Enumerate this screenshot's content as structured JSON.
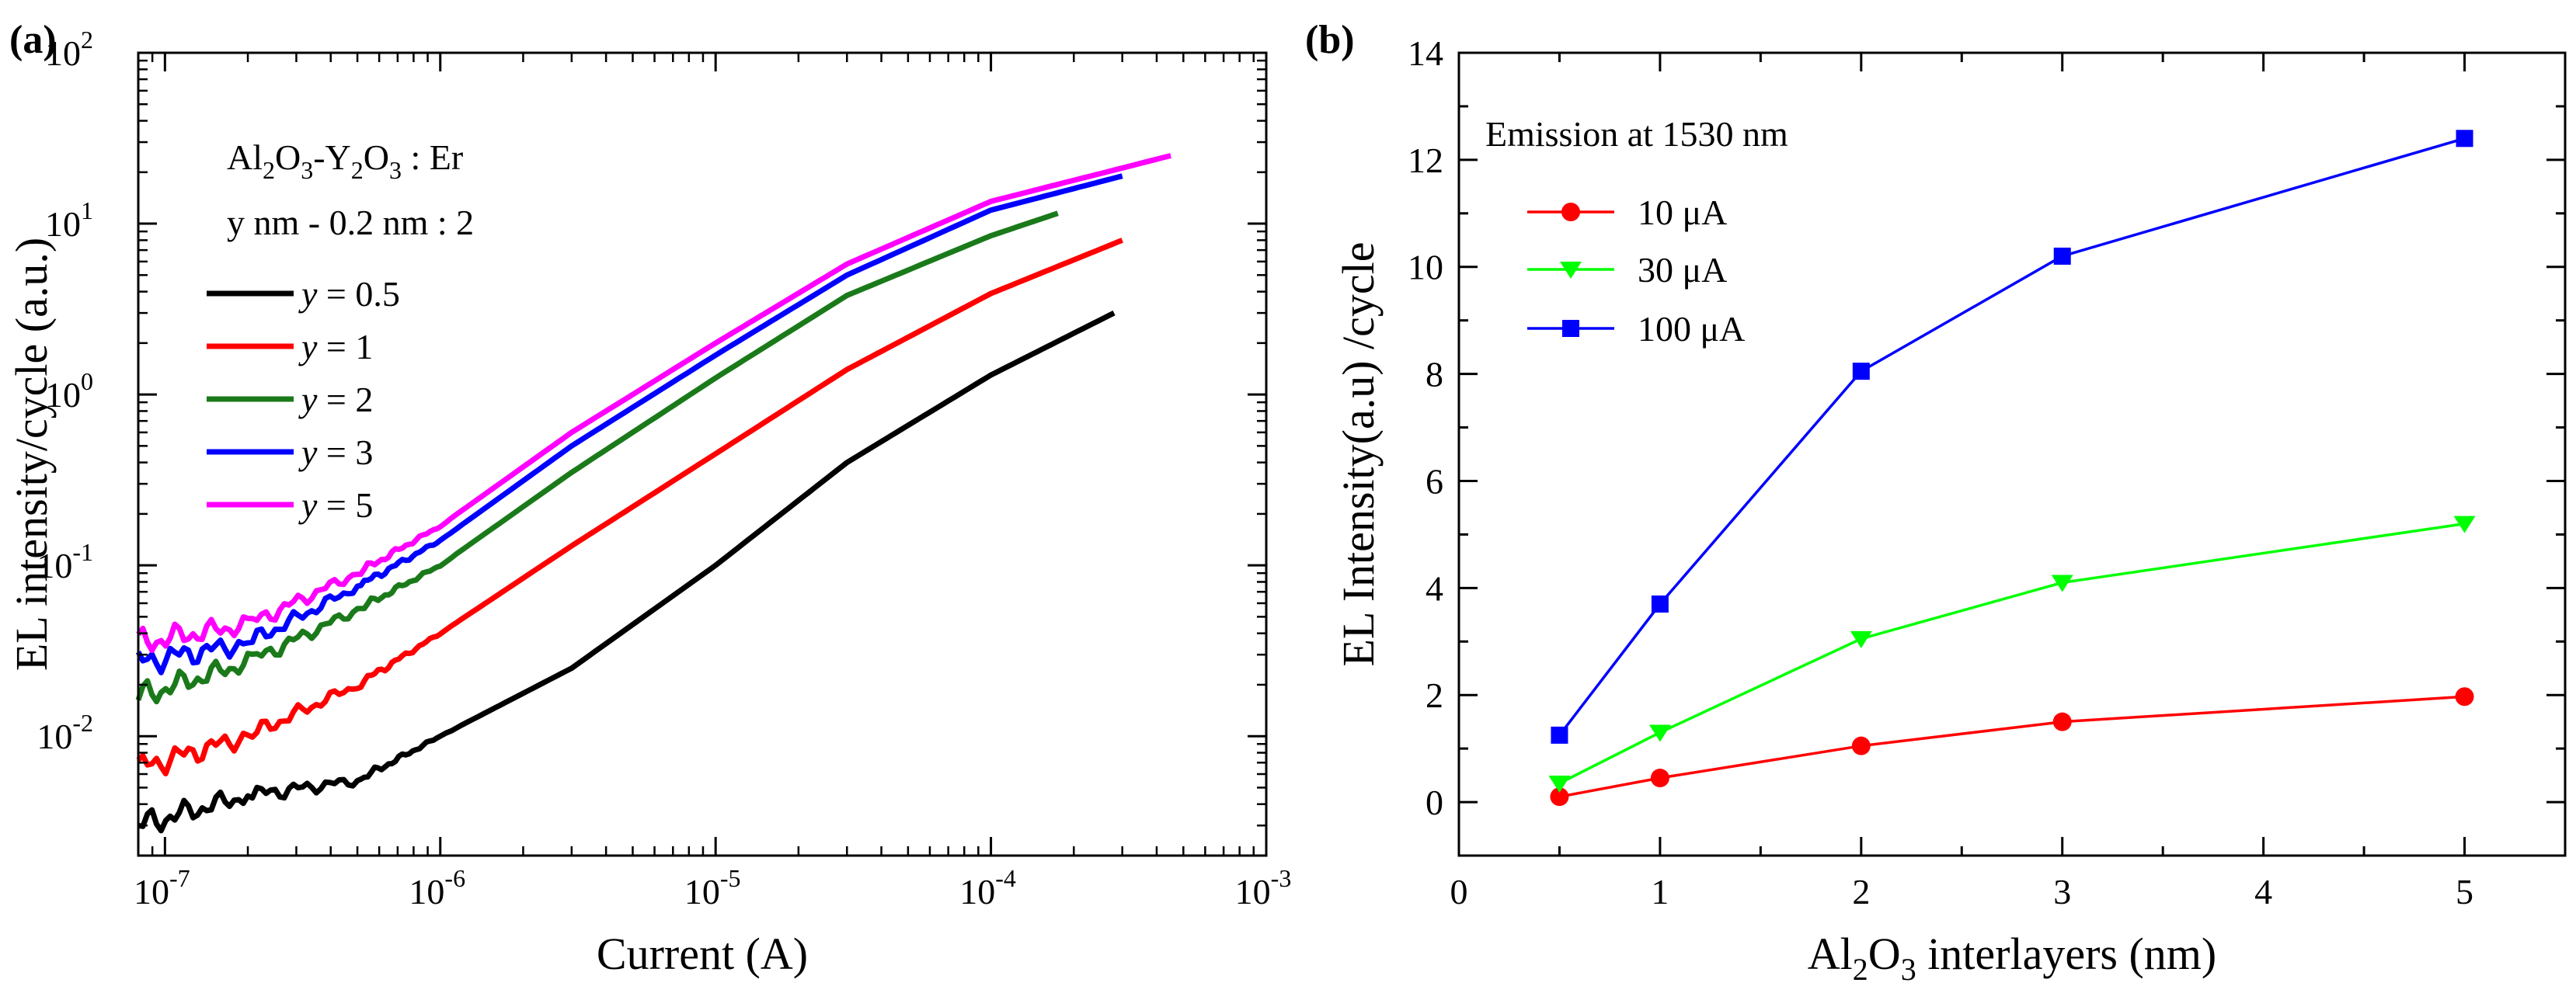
{
  "chart_data": [
    {
      "panel": "(a)",
      "type": "line",
      "xscale": "log",
      "yscale": "log",
      "xlabel": "Current (A)",
      "ylabel": "EL intensity/cycle (a.u.)",
      "xlim": [
        8e-08,
        0.001
      ],
      "ylim": [
        0.002,
        100
      ],
      "x_ticks": [
        {
          "value": 1e-07,
          "base": "10",
          "exp": "-7"
        },
        {
          "value": 1e-06,
          "base": "10",
          "exp": "-6"
        },
        {
          "value": 1e-05,
          "base": "10",
          "exp": "-5"
        },
        {
          "value": 0.0001,
          "base": "10",
          "exp": "-4"
        },
        {
          "value": 0.001,
          "base": "10",
          "exp": "-3"
        }
      ],
      "y_ticks": [
        {
          "value": 0.01,
          "base": "10",
          "exp": "-2"
        },
        {
          "value": 0.1,
          "base": "10",
          "exp": "-1"
        },
        {
          "value": 1,
          "base": "10",
          "exp": "0"
        },
        {
          "value": 10,
          "base": "10",
          "exp": "1"
        },
        {
          "value": 100,
          "base": "10",
          "exp": "2"
        }
      ],
      "annotation_line1": {
        "t1": "Al",
        "s1": "2",
        "t2": "O",
        "s2": "3",
        "t3": "-Y",
        "s3": "2",
        "t4": "O",
        "s4": "3",
        "t5": " : Er"
      },
      "annotation_line2": "y nm - 0.2 nm : 2",
      "legend_position": "upper-left",
      "legend_var": "y",
      "legend_eq": " = ",
      "series": [
        {
          "name": "y = 0.5",
          "label_value": "0.5",
          "color": "#000000",
          "points": [
            [
              8e-08,
              0.003
            ],
            [
              2e-07,
              0.0045
            ],
            [
              5e-07,
              0.0055
            ],
            [
              1e-06,
              0.01
            ],
            [
              3e-06,
              0.025
            ],
            [
              1e-05,
              0.1
            ],
            [
              3e-05,
              0.4
            ],
            [
              0.0001,
              1.3
            ],
            [
              0.00028,
              3.0
            ]
          ]
        },
        {
          "name": "y = 1",
          "label_value": "1",
          "color": "#ff0000",
          "points": [
            [
              8e-08,
              0.0065
            ],
            [
              2e-07,
              0.01
            ],
            [
              5e-07,
              0.02
            ],
            [
              1e-06,
              0.04
            ],
            [
              3e-06,
              0.13
            ],
            [
              1e-05,
              0.45
            ],
            [
              3e-05,
              1.4
            ],
            [
              0.0001,
              3.9
            ],
            [
              0.0003,
              8.0
            ]
          ]
        },
        {
          "name": "y = 2",
          "label_value": "2",
          "color": "#1a7a1a",
          "points": [
            [
              8e-08,
              0.017
            ],
            [
              2e-07,
              0.027
            ],
            [
              5e-07,
              0.055
            ],
            [
              1e-06,
              0.1
            ],
            [
              3e-06,
              0.35
            ],
            [
              1e-05,
              1.25
            ],
            [
              3e-05,
              3.8
            ],
            [
              0.0001,
              8.5
            ],
            [
              0.000175,
              11.5
            ]
          ]
        },
        {
          "name": "y = 3",
          "label_value": "3",
          "color": "#0000ff",
          "points": [
            [
              8e-08,
              0.027
            ],
            [
              2e-07,
              0.035
            ],
            [
              5e-07,
              0.075
            ],
            [
              1e-06,
              0.14
            ],
            [
              3e-06,
              0.5
            ],
            [
              1e-05,
              1.7
            ],
            [
              3e-05,
              5.0
            ],
            [
              0.0001,
              12.0
            ],
            [
              0.0003,
              19.0
            ]
          ]
        },
        {
          "name": "y = 5",
          "label_value": "5",
          "color": "#ff00ff",
          "points": [
            [
              8e-08,
              0.035
            ],
            [
              2e-07,
              0.045
            ],
            [
              5e-07,
              0.09
            ],
            [
              1e-06,
              0.17
            ],
            [
              3e-06,
              0.6
            ],
            [
              1e-05,
              2.0
            ],
            [
              3e-05,
              5.8
            ],
            [
              0.0001,
              13.5
            ],
            [
              0.00045,
              25.0
            ]
          ]
        }
      ]
    },
    {
      "panel": "(b)",
      "type": "line",
      "xscale": "linear",
      "yscale": "linear",
      "xlabel_parts": {
        "t1": "Al",
        "s1": "2",
        "t2": "O",
        "s2": "3",
        "t3": " interlayers (nm)"
      },
      "ylabel": "EL Intensity(a.u) /cycle",
      "xlim": [
        0,
        5.5
      ],
      "ylim": [
        -1,
        14
      ],
      "x_ticks": [
        "0",
        "1",
        "2",
        "3",
        "4",
        "5"
      ],
      "y_ticks": [
        "0",
        "2",
        "4",
        "6",
        "8",
        "10",
        "12",
        "14"
      ],
      "annotation": "Emission at 1530 nm",
      "legend_position": "upper-left",
      "x": [
        0.5,
        1,
        2,
        3,
        5
      ],
      "series": [
        {
          "name": "10  μA",
          "color": "#ff0000",
          "marker": "circle",
          "values": [
            0.1,
            0.45,
            1.05,
            1.5,
            1.97
          ]
        },
        {
          "name": "30 μA",
          "color": "#00ff00",
          "marker": "triangle-down",
          "values": [
            0.35,
            1.3,
            3.05,
            4.1,
            5.2
          ]
        },
        {
          "name": "100 μA",
          "color": "#0000ff",
          "marker": "square",
          "values": [
            1.25,
            3.7,
            8.05,
            10.2,
            12.4
          ]
        }
      ]
    }
  ]
}
